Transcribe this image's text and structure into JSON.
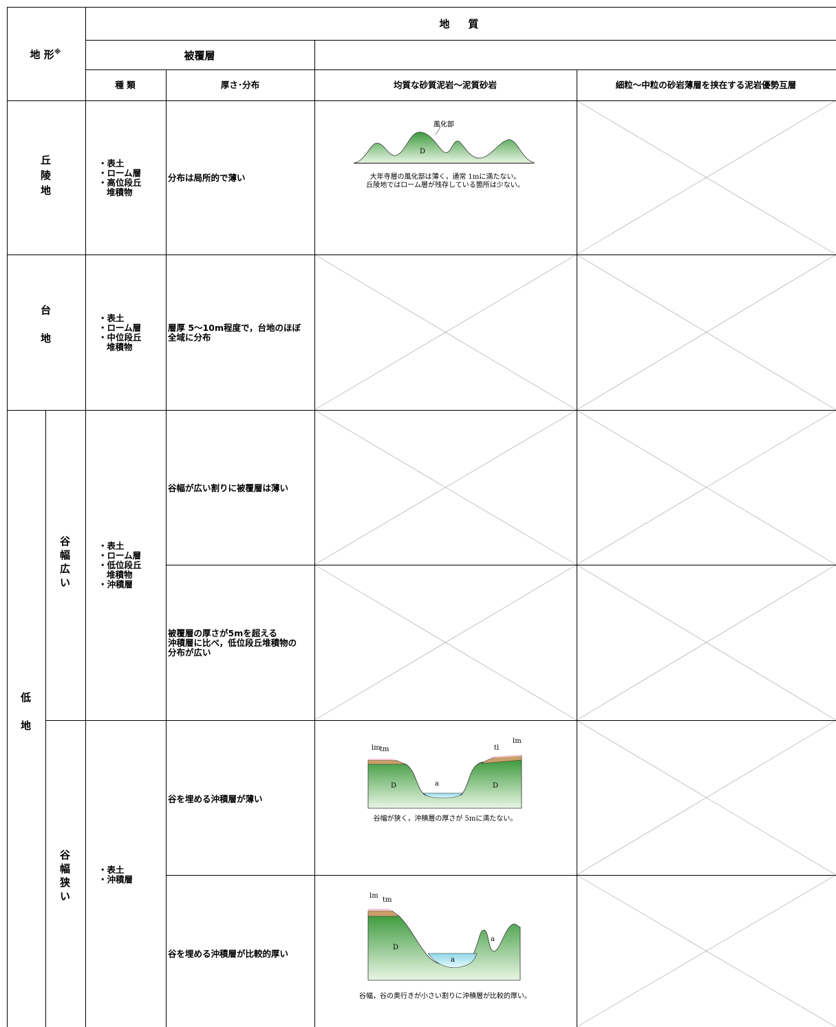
{
  "header": {
    "landform": "地 形",
    "landform_note": "※",
    "geology": "地　質",
    "cover": "被覆層",
    "kind": "種 類",
    "thickness": "厚さ･分布",
    "col_a": "均質な砂質泥岩～泥質砂岩",
    "col_b": "細粒～中粒の砂岩薄層を挟在する泥岩優勢互層"
  },
  "hills": {
    "label": "丘陵地",
    "kinds": [
      "・表土",
      "・ローム層",
      "・高位段丘",
      "堆積物"
    ],
    "thickness": [
      "分布は局所的で薄い"
    ],
    "figure": {
      "labels": [
        "風化部",
        "D"
      ],
      "caption": [
        "大年寺層の風化部は薄く，通常 1mに満たない。",
        "丘陵地ではローム層が残存している箇所は少ない。"
      ]
    }
  },
  "terrace": {
    "label": "台地",
    "kinds": [
      "・表土",
      "・ローム層",
      "・中位段丘",
      "堆積物"
    ],
    "thickness": [
      "層厚 5～10m程度で，台地のほぼ",
      "全域に分布"
    ]
  },
  "lowland": {
    "label": "低地",
    "wide": {
      "label": "谷幅広い",
      "kinds": [
        "・表土",
        "・ローム層",
        "・低位段丘",
        "堆積物",
        "・沖積層"
      ],
      "rows": [
        {
          "thickness": [
            "谷幅が広い割りに被覆層は薄い"
          ]
        },
        {
          "thickness": [
            "被覆層の厚さが5mを超える",
            "沖積層に比べ，低位段丘堆積物の",
            "分布が広い"
          ]
        }
      ]
    },
    "narrow": {
      "label": "谷幅狭い",
      "kinds": [
        "・表土",
        "・沖積層"
      ],
      "rows": [
        {
          "thickness": [
            "谷を埋める沖積層が薄い"
          ],
          "figure": {
            "labels": [
              "lm",
              "tm",
              "tl",
              "lm",
              "D",
              "a",
              "D"
            ],
            "caption": [
              "谷幅が狭く，沖積層の厚さが 5mに満たない。"
            ]
          }
        },
        {
          "thickness": [
            "谷を埋める沖積層が比較的厚い"
          ],
          "figure": {
            "labels": [
              "lm",
              "tm",
              "D",
              "a",
              "a"
            ],
            "caption": [
              "谷幅，谷の奥行きが小さい割りに沖積層が比較的厚い。"
            ]
          }
        }
      ]
    }
  }
}
